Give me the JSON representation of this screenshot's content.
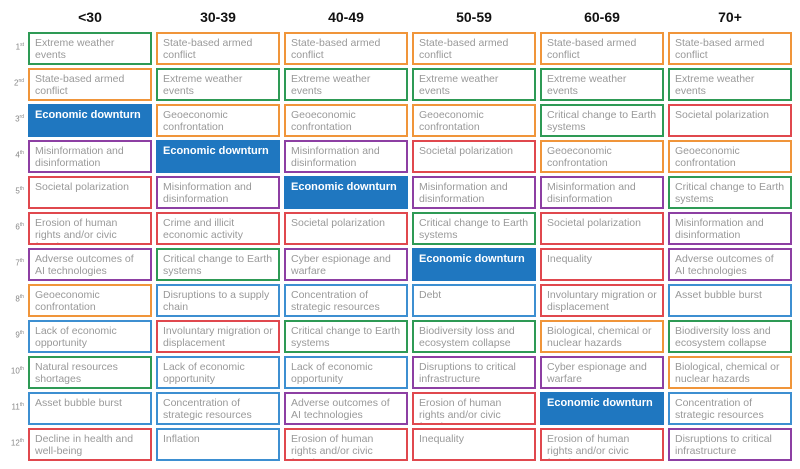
{
  "columns": [
    "<30",
    "30-39",
    "40-49",
    "50-59",
    "60-69",
    "70+"
  ],
  "ranks": [
    {
      "n": "1",
      "suffix": "st"
    },
    {
      "n": "2",
      "suffix": "nd"
    },
    {
      "n": "3",
      "suffix": "rd"
    },
    {
      "n": "4",
      "suffix": "th"
    },
    {
      "n": "5",
      "suffix": "th"
    },
    {
      "n": "6",
      "suffix": "th"
    },
    {
      "n": "7",
      "suffix": "th"
    },
    {
      "n": "8",
      "suffix": "th"
    },
    {
      "n": "9",
      "suffix": "th"
    },
    {
      "n": "10",
      "suffix": "th"
    },
    {
      "n": "11",
      "suffix": "th"
    },
    {
      "n": "12",
      "suffix": "th"
    }
  ],
  "colors": {
    "orange": "#f0953a",
    "green": "#2e9a55",
    "purple": "#8d3fa3",
    "red": "#e0484e",
    "blue": "#3d8fd1",
    "highlight": "#1f77c0"
  },
  "grid": [
    [
      {
        "text": "Extreme weather events",
        "color": "green"
      },
      {
        "text": "State-based armed conflict",
        "color": "orange"
      },
      {
        "text": "State-based armed conflict",
        "color": "orange"
      },
      {
        "text": "State-based armed conflict",
        "color": "orange"
      },
      {
        "text": "State-based armed conflict",
        "color": "orange"
      },
      {
        "text": "State-based armed conflict",
        "color": "orange"
      }
    ],
    [
      {
        "text": "State-based armed conflict",
        "color": "orange"
      },
      {
        "text": "Extreme weather events",
        "color": "green"
      },
      {
        "text": "Extreme weather events",
        "color": "green"
      },
      {
        "text": "Extreme weather events",
        "color": "green"
      },
      {
        "text": "Extreme weather events",
        "color": "green"
      },
      {
        "text": "Extreme weather events",
        "color": "green"
      }
    ],
    [
      {
        "text": "Economic downturn",
        "color": "highlight",
        "highlight": true
      },
      {
        "text": "Geoeconomic confrontation",
        "color": "orange"
      },
      {
        "text": "Geoeconomic confrontation",
        "color": "orange"
      },
      {
        "text": "Geoeconomic confrontation",
        "color": "orange"
      },
      {
        "text": "Critical change to Earth systems",
        "color": "green"
      },
      {
        "text": "Societal polarization",
        "color": "red"
      }
    ],
    [
      {
        "text": "Misinformation and disinformation",
        "color": "purple"
      },
      {
        "text": "Economic downturn",
        "color": "highlight",
        "highlight": true
      },
      {
        "text": "Misinformation and disinformation",
        "color": "purple"
      },
      {
        "text": "Societal polarization",
        "color": "red"
      },
      {
        "text": "Geoeconomic confrontation",
        "color": "orange"
      },
      {
        "text": "Geoeconomic confrontation",
        "color": "orange"
      }
    ],
    [
      {
        "text": "Societal polarization",
        "color": "red"
      },
      {
        "text": "Misinformation and disinformation",
        "color": "purple"
      },
      {
        "text": "Economic downturn",
        "color": "highlight",
        "highlight": true
      },
      {
        "text": "Misinformation and disinformation",
        "color": "purple"
      },
      {
        "text": "Misinformation and disinformation",
        "color": "purple"
      },
      {
        "text": "Critical change to Earth systems",
        "color": "green"
      }
    ],
    [
      {
        "text": "Erosion of human rights and/or civic freedoms",
        "color": "red"
      },
      {
        "text": "Crime and illicit economic activity",
        "color": "red"
      },
      {
        "text": "Societal polarization",
        "color": "red"
      },
      {
        "text": "Critical change to Earth systems",
        "color": "green"
      },
      {
        "text": "Societal polarization",
        "color": "red"
      },
      {
        "text": "Misinformation and disinformation",
        "color": "purple"
      }
    ],
    [
      {
        "text": "Adverse outcomes of AI technologies",
        "color": "purple"
      },
      {
        "text": "Critical change to Earth systems",
        "color": "green"
      },
      {
        "text": "Cyber espionage and warfare",
        "color": "purple"
      },
      {
        "text": "Economic downturn",
        "color": "highlight",
        "highlight": true
      },
      {
        "text": "Inequality",
        "color": "red"
      },
      {
        "text": "Adverse outcomes of AI technologies",
        "color": "purple"
      }
    ],
    [
      {
        "text": "Geoeconomic confrontation",
        "color": "orange"
      },
      {
        "text": "Disruptions to a supply chain",
        "color": "blue"
      },
      {
        "text": "Concentration of strategic resources",
        "color": "blue"
      },
      {
        "text": "Debt",
        "color": "blue"
      },
      {
        "text": "Involuntary migration or displacement",
        "color": "red"
      },
      {
        "text": "Asset bubble burst",
        "color": "blue"
      }
    ],
    [
      {
        "text": "Lack of economic opportunity",
        "color": "blue"
      },
      {
        "text": "Involuntary migration or displacement",
        "color": "red"
      },
      {
        "text": "Critical change to Earth systems",
        "color": "green"
      },
      {
        "text": "Biodiversity loss and ecosystem collapse",
        "color": "green"
      },
      {
        "text": "Biological, chemical or nuclear hazards",
        "color": "orange"
      },
      {
        "text": "Biodiversity loss and ecosystem collapse",
        "color": "green"
      }
    ],
    [
      {
        "text": "Natural resources shortages",
        "color": "green"
      },
      {
        "text": "Lack of economic opportunity",
        "color": "blue"
      },
      {
        "text": "Lack of economic opportunity",
        "color": "blue"
      },
      {
        "text": "Disruptions to critical infrastructure",
        "color": "purple"
      },
      {
        "text": "Cyber espionage and warfare",
        "color": "purple"
      },
      {
        "text": "Biological, chemical or nuclear hazards",
        "color": "orange"
      }
    ],
    [
      {
        "text": "Asset bubble burst",
        "color": "blue"
      },
      {
        "text": "Concentration of strategic resources",
        "color": "blue"
      },
      {
        "text": "Adverse outcomes of AI technologies",
        "color": "purple"
      },
      {
        "text": "Erosion of human rights and/or civic freedoms",
        "color": "red"
      },
      {
        "text": "Economic downturn",
        "color": "highlight",
        "highlight": true
      },
      {
        "text": "Concentration of strategic resources",
        "color": "blue"
      }
    ],
    [
      {
        "text": "Decline in health and well-being",
        "color": "red"
      },
      {
        "text": "Inflation",
        "color": "blue"
      },
      {
        "text": "Erosion of human rights and/or civic freedoms",
        "color": "red"
      },
      {
        "text": "Inequality",
        "color": "red"
      },
      {
        "text": "Erosion of human rights and/or civic freedoms",
        "color": "red"
      },
      {
        "text": "Disruptions to critical infrastructure",
        "color": "purple"
      }
    ]
  ]
}
